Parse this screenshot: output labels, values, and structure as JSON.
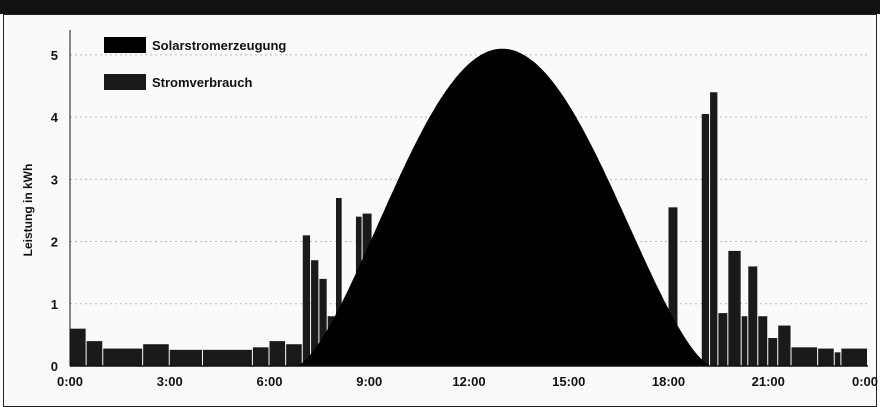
{
  "chart_data": {
    "type": "area",
    "ylabel": "Leistung in kWh",
    "xlabel": "",
    "x_ticks": [
      "0:00",
      "3:00",
      "6:00",
      "9:00",
      "12:00",
      "15:00",
      "18:00",
      "21:00",
      "0:00"
    ],
    "y_ticks": [
      "0",
      "1",
      "2",
      "3",
      "4",
      "5"
    ],
    "xlim": [
      0,
      24
    ],
    "ylim": [
      0,
      5.4
    ],
    "grid": "horizontal",
    "legend_position": "top-left",
    "series": [
      {
        "name": "Solarstromerzeugung",
        "type": "area",
        "color": "#000000",
        "sunrise": 6.8,
        "sunset": 19.3,
        "peak_time": 13.0,
        "peak_value": 5.1
      },
      {
        "name": "Stromverbrauch",
        "type": "bar",
        "color": "#1a1a1a",
        "bins": [
          {
            "start": 0.0,
            "end": 0.5,
            "value": 0.6
          },
          {
            "start": 0.5,
            "end": 1.0,
            "value": 0.4
          },
          {
            "start": 1.0,
            "end": 2.2,
            "value": 0.28
          },
          {
            "start": 2.2,
            "end": 3.0,
            "value": 0.35
          },
          {
            "start": 3.0,
            "end": 4.0,
            "value": 0.26
          },
          {
            "start": 4.0,
            "end": 5.5,
            "value": 0.26
          },
          {
            "start": 5.5,
            "end": 6.0,
            "value": 0.3
          },
          {
            "start": 6.0,
            "end": 6.5,
            "value": 0.4
          },
          {
            "start": 6.5,
            "end": 7.0,
            "value": 0.35
          },
          {
            "start": 7.0,
            "end": 7.25,
            "value": 2.1
          },
          {
            "start": 7.25,
            "end": 7.5,
            "value": 1.7
          },
          {
            "start": 7.5,
            "end": 7.75,
            "value": 1.4
          },
          {
            "start": 7.75,
            "end": 8.0,
            "value": 0.8
          },
          {
            "start": 8.0,
            "end": 8.2,
            "value": 2.7
          },
          {
            "start": 8.2,
            "end": 8.6,
            "value": 1.0
          },
          {
            "start": 8.6,
            "end": 8.8,
            "value": 2.4
          },
          {
            "start": 8.8,
            "end": 9.1,
            "value": 2.45
          },
          {
            "start": 18.0,
            "end": 18.3,
            "value": 2.55
          },
          {
            "start": 19.0,
            "end": 19.25,
            "value": 4.05
          },
          {
            "start": 19.25,
            "end": 19.5,
            "value": 4.4
          },
          {
            "start": 19.5,
            "end": 19.8,
            "value": 0.85
          },
          {
            "start": 19.8,
            "end": 20.2,
            "value": 1.85
          },
          {
            "start": 20.2,
            "end": 20.4,
            "value": 0.8
          },
          {
            "start": 20.4,
            "end": 20.7,
            "value": 1.6
          },
          {
            "start": 20.7,
            "end": 21.0,
            "value": 0.8
          },
          {
            "start": 21.0,
            "end": 21.3,
            "value": 0.45
          },
          {
            "start": 21.3,
            "end": 21.7,
            "value": 0.65
          },
          {
            "start": 21.7,
            "end": 22.5,
            "value": 0.3
          },
          {
            "start": 22.5,
            "end": 23.0,
            "value": 0.28
          },
          {
            "start": 23.0,
            "end": 23.2,
            "value": 0.22
          },
          {
            "start": 23.2,
            "end": 24.0,
            "value": 0.28
          }
        ]
      }
    ]
  }
}
